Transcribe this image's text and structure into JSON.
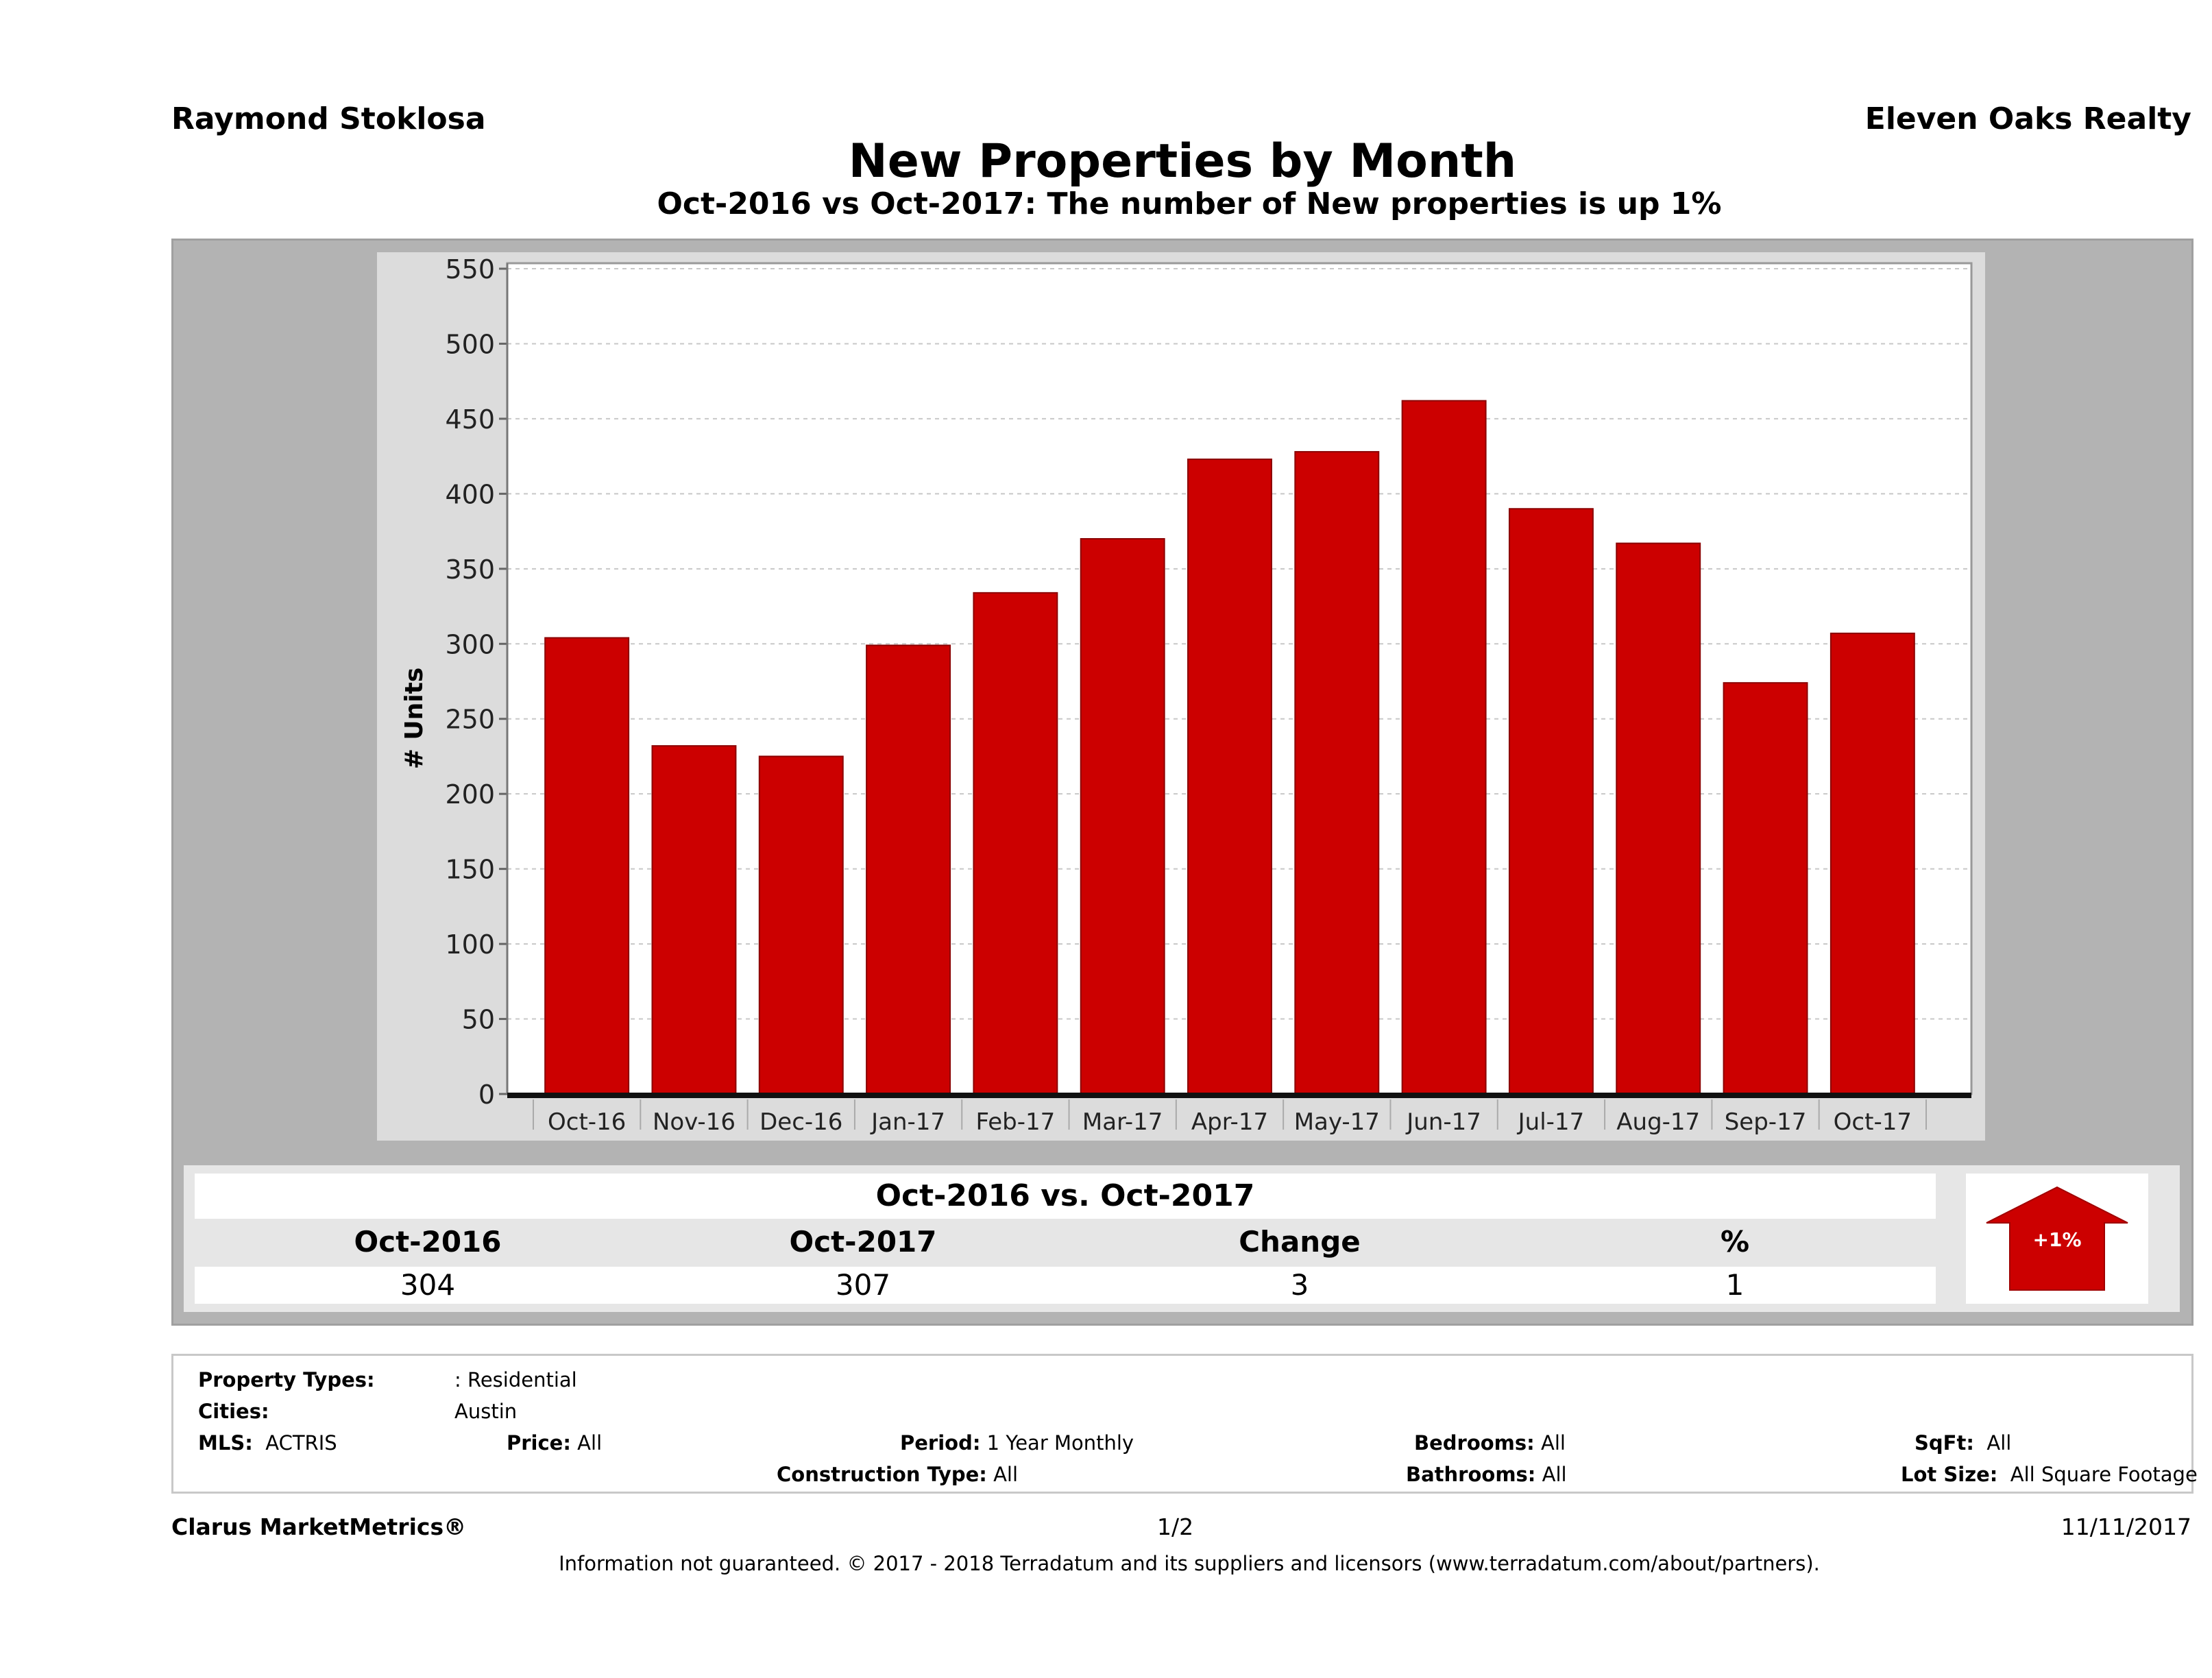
{
  "header": {
    "agent_name": "Raymond Stoklosa",
    "company": "Eleven Oaks Realty",
    "title": "New Properties by Month",
    "subtitle": "Oct-2016 vs Oct-2017: The number of New  properties is up 1%"
  },
  "chart_data": {
    "type": "bar",
    "title": "New Properties by Month",
    "xlabel": "",
    "ylabel": "# Units",
    "categories": [
      "Oct-16",
      "Nov-16",
      "Dec-16",
      "Jan-17",
      "Feb-17",
      "Mar-17",
      "Apr-17",
      "May-17",
      "Jun-17",
      "Jul-17",
      "Aug-17",
      "Sep-17",
      "Oct-17"
    ],
    "values": [
      304,
      232,
      225,
      299,
      334,
      370,
      423,
      428,
      462,
      390,
      367,
      274,
      307
    ],
    "ylim": [
      0,
      550
    ],
    "yticks": [
      0,
      50,
      100,
      150,
      200,
      250,
      300,
      350,
      400,
      450,
      500,
      550
    ],
    "grid": true,
    "bar_color": "#cc0000",
    "legend": "none"
  },
  "comparison": {
    "title": "Oct-2016 vs. Oct-2017",
    "headers": [
      "Oct-2016",
      "Oct-2017",
      "Change",
      "%"
    ],
    "values": [
      "304",
      "307",
      "3",
      "1"
    ],
    "badge": {
      "label": "+1%",
      "direction": "up",
      "color": "#cc0000"
    }
  },
  "criteria": {
    "property_types_label": "Property Types:",
    "property_types_value": ": Residential",
    "cities_label": "Cities:",
    "cities_value": "Austin",
    "mls_label": "MLS:",
    "mls_value": "ACTRIS",
    "price_label": "Price:",
    "price_value": "All",
    "period_label": "Period:",
    "period_value": "1 Year Monthly",
    "construction_label": "Construction Type:",
    "construction_value": "All",
    "bedrooms_label": "Bedrooms:",
    "bedrooms_value": "All",
    "bathrooms_label": "Bathrooms:",
    "bathrooms_value": "All",
    "sqft_label": "SqFt:",
    "sqft_value": "All",
    "lot_label": "Lot Size:",
    "lot_value": "All Square Footage"
  },
  "footer": {
    "brand": "Clarus MarketMetrics®",
    "page": "1/2",
    "date": "11/11/2017",
    "disclaimer": "Information not guaranteed. © 2017 - 2018 Terradatum and its suppliers and licensors (www.terradatum.com/about/partners)."
  }
}
